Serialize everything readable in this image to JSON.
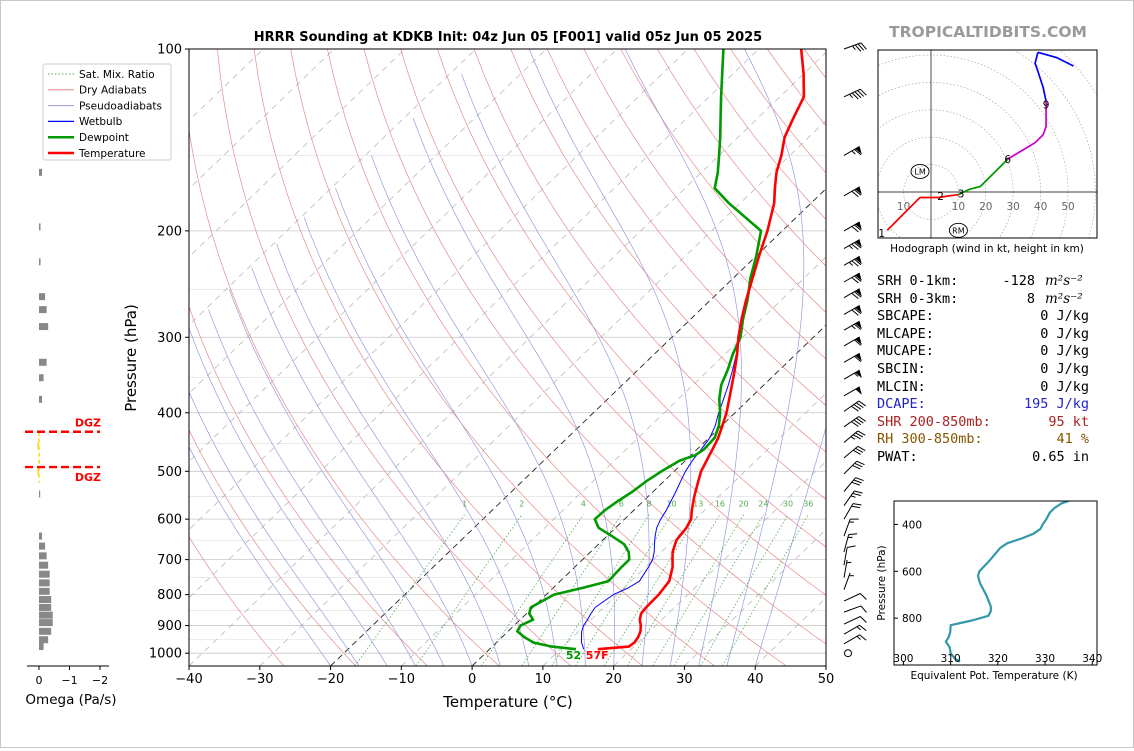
{
  "site_watermark": "TROPICALTIDBITS.COM",
  "colors": {
    "temperature": "#ff0000",
    "dewpoint": "#009900",
    "wetbulb": "#0000ff",
    "dry_adiabat": "#e88a8a",
    "pseudoadiabat": "#9a9ae0",
    "mixing_ratio": "#55aa55",
    "dgz": "#ff0000",
    "theta_e": "#3399aa"
  },
  "chart_data": [
    {
      "id": "skewt",
      "type": "line",
      "title": "HRRR Sounding at KDKB Init: 04z Jun 05 [F001] valid 05z Jun 05 2025",
      "xlabel": "Temperature (°C)",
      "ylabel": "Pressure (hPa)",
      "xlim": [
        -40,
        50
      ],
      "ylim": [
        1050,
        100
      ],
      "y_scale": "log",
      "xticks": [
        "−40",
        "−30",
        "−20",
        "−10",
        "0",
        "10",
        "20",
        "30",
        "40",
        "50"
      ],
      "yticks": [
        "100",
        "200",
        "300",
        "400",
        "500",
        "600",
        "700",
        "800",
        "900",
        "1000"
      ],
      "grid": true,
      "legend": {
        "position": "top-left",
        "entries": [
          "Sat. Mix. Ratio",
          "Dry Adiabats",
          "Pseudoadiabats",
          "Wetbulb",
          "Dewpoint",
          "Temperature"
        ]
      },
      "mixing_ratio_labels": [
        "1",
        "2",
        "4",
        "6",
        "8",
        "10",
        "13",
        "16",
        "20",
        "24",
        "30",
        "36"
      ],
      "surface_labels": {
        "dewpoint": "52",
        "temperature": "57F"
      },
      "series": [
        {
          "name": "Temperature",
          "p": [
            985,
            975,
            960,
            940,
            920,
            900,
            880,
            860,
            840,
            800,
            760,
            720,
            700,
            680,
            650,
            620,
            600,
            580,
            550,
            520,
            500,
            480,
            460,
            440,
            420,
            400,
            380,
            360,
            340,
            320,
            300,
            280,
            260,
            240,
            220,
            200,
            180,
            170,
            160,
            150,
            140,
            130,
            120,
            110,
            100
          ],
          "t": [
            15.3,
            19.3,
            19.5,
            19.2,
            18.7,
            17.9,
            16.9,
            16.2,
            16.0,
            15.9,
            15.4,
            13.8,
            12.7,
            11.6,
            10.4,
            10.0,
            9.4,
            8.2,
            6.5,
            4.9,
            3.8,
            3.0,
            2.2,
            1.3,
            0.1,
            -1.2,
            -2.8,
            -4.5,
            -6.3,
            -8.3,
            -10.6,
            -12.8,
            -15.0,
            -17.2,
            -19.6,
            -22.1,
            -25.2,
            -27.3,
            -29.4,
            -31.2,
            -33.4,
            -35.0,
            -36.6,
            -40.0,
            -44.0
          ]
        },
        {
          "name": "Dewpoint",
          "p": [
            985,
            975,
            960,
            940,
            920,
            900,
            880,
            860,
            840,
            800,
            780,
            760,
            740,
            720,
            700,
            680,
            660,
            640,
            620,
            600,
            580,
            560,
            540,
            520,
            500,
            480,
            470,
            460,
            440,
            420,
            400,
            380,
            360,
            340,
            320,
            300,
            280,
            260,
            240,
            220,
            200,
            180,
            170,
            160,
            150,
            140,
            130,
            120,
            110,
            100
          ],
          "t": [
            12.2,
            8.4,
            5.2,
            3.1,
            1.3,
            0.9,
            1.8,
            0.4,
            -0.3,
            1.1,
            4.1,
            6.8,
            6.7,
            6.6,
            6.6,
            5.4,
            3.6,
            0.7,
            -2.4,
            -4.2,
            -4.1,
            -3.6,
            -2.9,
            -2.5,
            -1.8,
            -0.8,
            0.6,
            1.0,
            0.8,
            -0.4,
            -2.1,
            -4.2,
            -6.0,
            -7.3,
            -8.9,
            -10.3,
            -12.6,
            -14.8,
            -17.5,
            -20.0,
            -23.0,
            -31.6,
            -35.8,
            -37.7,
            -40.0,
            -42.5,
            -45.3,
            -48.3,
            -51.5,
            -55.0
          ]
        },
        {
          "name": "Wetbulb",
          "p": [
            985,
            975,
            960,
            940,
            920,
            900,
            880,
            860,
            840,
            800,
            780,
            760,
            740,
            720,
            700,
            680,
            660,
            640,
            620,
            600,
            580,
            560,
            540,
            520,
            500,
            480,
            460,
            440,
            420,
            400,
            380,
            360,
            340,
            320,
            300,
            280,
            260,
            240,
            220,
            200
          ],
          "t": [
            13.3,
            12.8,
            12.0,
            11.2,
            10.4,
            9.8,
            9.5,
            9.1,
            8.8,
            9.5,
            10.6,
            11.2,
            10.8,
            10.4,
            9.9,
            9.0,
            7.9,
            6.8,
            5.8,
            5.1,
            4.6,
            3.9,
            3.2,
            2.4,
            1.6,
            1.0,
            0.6,
            0.1,
            -0.9,
            -2.3,
            -3.6,
            -5.0,
            -6.6,
            -8.4,
            -10.6,
            -12.8,
            -15.0,
            -17.2,
            -19.6,
            -22.1
          ]
        }
      ],
      "wind_barbs": [
        {
          "p": 1000,
          "dir": 0,
          "kt": 0
        },
        {
          "p": 965,
          "dir": 240,
          "kt": 15
        },
        {
          "p": 930,
          "dir": 240,
          "kt": 15
        },
        {
          "p": 895,
          "dir": 245,
          "kt": 10
        },
        {
          "p": 855,
          "dir": 250,
          "kt": 10
        },
        {
          "p": 820,
          "dir": 245,
          "kt": 10
        },
        {
          "p": 785,
          "dir": 200,
          "kt": 5
        },
        {
          "p": 750,
          "dir": 190,
          "kt": 5
        },
        {
          "p": 715,
          "dir": 190,
          "kt": 10
        },
        {
          "p": 680,
          "dir": 195,
          "kt": 15
        },
        {
          "p": 640,
          "dir": 200,
          "kt": 15
        },
        {
          "p": 600,
          "dir": 210,
          "kt": 20
        },
        {
          "p": 570,
          "dir": 215,
          "kt": 25
        },
        {
          "p": 540,
          "dir": 220,
          "kt": 30
        },
        {
          "p": 505,
          "dir": 225,
          "kt": 30
        },
        {
          "p": 475,
          "dir": 230,
          "kt": 30
        },
        {
          "p": 448,
          "dir": 230,
          "kt": 35
        },
        {
          "p": 422,
          "dir": 235,
          "kt": 40
        },
        {
          "p": 398,
          "dir": 235,
          "kt": 40
        },
        {
          "p": 375,
          "dir": 240,
          "kt": 50
        },
        {
          "p": 352,
          "dir": 240,
          "kt": 55
        },
        {
          "p": 330,
          "dir": 240,
          "kt": 60
        },
        {
          "p": 310,
          "dir": 240,
          "kt": 60
        },
        {
          "p": 292,
          "dir": 240,
          "kt": 65
        },
        {
          "p": 275,
          "dir": 240,
          "kt": 70
        },
        {
          "p": 258,
          "dir": 240,
          "kt": 70
        },
        {
          "p": 243,
          "dir": 240,
          "kt": 70
        },
        {
          "p": 228,
          "dir": 240,
          "kt": 75
        },
        {
          "p": 214,
          "dir": 240,
          "kt": 75
        },
        {
          "p": 200,
          "dir": 240,
          "kt": 70
        },
        {
          "p": 175,
          "dir": 240,
          "kt": 70
        },
        {
          "p": 150,
          "dir": 240,
          "kt": 65
        },
        {
          "p": 120,
          "dir": 245,
          "kt": 45
        },
        {
          "p": 100,
          "dir": 250,
          "kt": 35
        }
      ]
    },
    {
      "id": "omega",
      "type": "bar",
      "xlabel": "Omega (Pa/s)",
      "xticks": [
        "0",
        "−1",
        "−2"
      ],
      "xlim": [
        0.4,
        -2.2
      ],
      "dgz_label": "DGZ",
      "dgz_bounds_hpa": [
        430,
        492
      ],
      "series": [
        {
          "name": "omega",
          "p": [
            160,
            197,
            225,
            257,
            270,
            288,
            330,
            350,
            380,
            455,
            500,
            545,
            640,
            665,
            690,
            715,
            740,
            765,
            790,
            815,
            840,
            865,
            890,
            920,
            950,
            975
          ],
          "values": [
            -0.1,
            -0.05,
            -0.05,
            -0.2,
            -0.25,
            -0.3,
            -0.25,
            -0.15,
            -0.1,
            0.05,
            0.05,
            0.0,
            -0.1,
            -0.2,
            -0.25,
            -0.3,
            -0.35,
            -0.35,
            -0.35,
            -0.4,
            -0.4,
            -0.45,
            -0.45,
            -0.4,
            -0.3,
            -0.15
          ]
        }
      ]
    },
    {
      "id": "hodograph",
      "type": "line",
      "xlabel": "Hodograph (wind in kt, height in km)",
      "xlim": [
        -20,
        62
      ],
      "ylim": [
        -15,
        55
      ],
      "ring_labels": [
        "10",
        "10",
        "20",
        "30",
        "40",
        "50"
      ],
      "height_labels": [
        "1",
        "2",
        "3",
        "6",
        "9"
      ],
      "marker_labels": {
        "left_mover": "LM",
        "right_mover": "RM"
      },
      "segments": [
        {
          "range_km": "0-1",
          "color": "#ff0000",
          "u": [
            -16,
            -13,
            -10,
            -7,
            -4,
            -2.2,
            0,
            3
          ],
          "v": [
            -14,
            -11,
            -8,
            -5,
            -2,
            -2,
            -2,
            -2
          ]
        },
        {
          "range_km": "1-3",
          "color": "#ff0000",
          "u": [
            3,
            6,
            10
          ],
          "v": [
            -2,
            -1.5,
            -1
          ]
        },
        {
          "range_km": "3-6",
          "color": "#009900",
          "u": [
            10,
            14,
            18,
            20,
            24,
            28
          ],
          "v": [
            -1,
            1,
            2,
            4,
            8,
            12
          ]
        },
        {
          "range_km": "6-9",
          "color": "#cc00cc",
          "u": [
            28,
            33,
            38,
            41,
            42,
            42
          ],
          "v": [
            12,
            15,
            18,
            21,
            24,
            33
          ]
        },
        {
          "range_km": "9-12",
          "color": "#0000ff",
          "u": [
            42,
            41,
            39,
            38,
            39
          ],
          "v": [
            33,
            38,
            44,
            47,
            51
          ]
        },
        {
          "range_km": "12+",
          "color": "#0000ff",
          "u": [
            39,
            46,
            52
          ],
          "v": [
            51,
            49,
            46
          ]
        }
      ],
      "lm": [
        -4,
        7.5
      ],
      "rm": [
        10,
        -14
      ]
    },
    {
      "id": "theta_e",
      "type": "line",
      "xlabel": "Equivalent Pot. Temperature (K)",
      "ylabel": "Pressure (hPa)",
      "xlim": [
        298,
        341
      ],
      "ylim": [
        1000,
        300
      ],
      "xticks": [
        "300",
        "310",
        "320",
        "330",
        "340"
      ],
      "yticks": [
        "400",
        "600",
        "800"
      ],
      "series": [
        {
          "name": "theta_e",
          "p": [
            985,
            975,
            950,
            925,
            900,
            880,
            860,
            830,
            810,
            790,
            770,
            750,
            700,
            650,
            620,
            600,
            560,
            500,
            480,
            460,
            440,
            420,
            400,
            380,
            350,
            330,
            310,
            300
          ],
          "values": [
            312.0,
            311.0,
            310.0,
            309.8,
            309.0,
            309.6,
            309.9,
            310.0,
            314.5,
            318.0,
            318.5,
            318.5,
            317.5,
            316.2,
            315.8,
            316.1,
            318.0,
            320.5,
            322.0,
            325.0,
            327.5,
            329.0,
            329.5,
            330.2,
            331.0,
            332.0,
            333.5,
            335.0
          ]
        }
      ]
    }
  ],
  "stats": [
    {
      "label": "SRH 0-1km:",
      "value": "-128",
      "unit": "m²s⁻²",
      "color": "#000000"
    },
    {
      "label": "SRH 0-3km:",
      "value": "8",
      "unit": "m²s⁻²",
      "color": "#000000"
    },
    {
      "label": "SBCAPE:",
      "value": "0 J/kg",
      "unit": "",
      "color": "#000000"
    },
    {
      "label": "MLCAPE:",
      "value": "0 J/kg",
      "unit": "",
      "color": "#000000"
    },
    {
      "label": "MUCAPE:",
      "value": "0 J/kg",
      "unit": "",
      "color": "#000000"
    },
    {
      "label": "SBCIN:",
      "value": "0 J/kg",
      "unit": "",
      "color": "#000000"
    },
    {
      "label": "MLCIN:",
      "value": "0 J/kg",
      "unit": "",
      "color": "#000000"
    },
    {
      "label": "DCAPE:",
      "value": "195 J/kg",
      "unit": "",
      "color": "#2222cc"
    },
    {
      "label": "SHR 200-850mb:",
      "value": "95 kt",
      "unit": "",
      "color": "#aa2222"
    },
    {
      "label": "RH 300-850mb:",
      "value": "41 %",
      "unit": "",
      "color": "#885500"
    },
    {
      "label": "PWAT:",
      "value": "0.65 in",
      "unit": "",
      "color": "#000000"
    }
  ]
}
